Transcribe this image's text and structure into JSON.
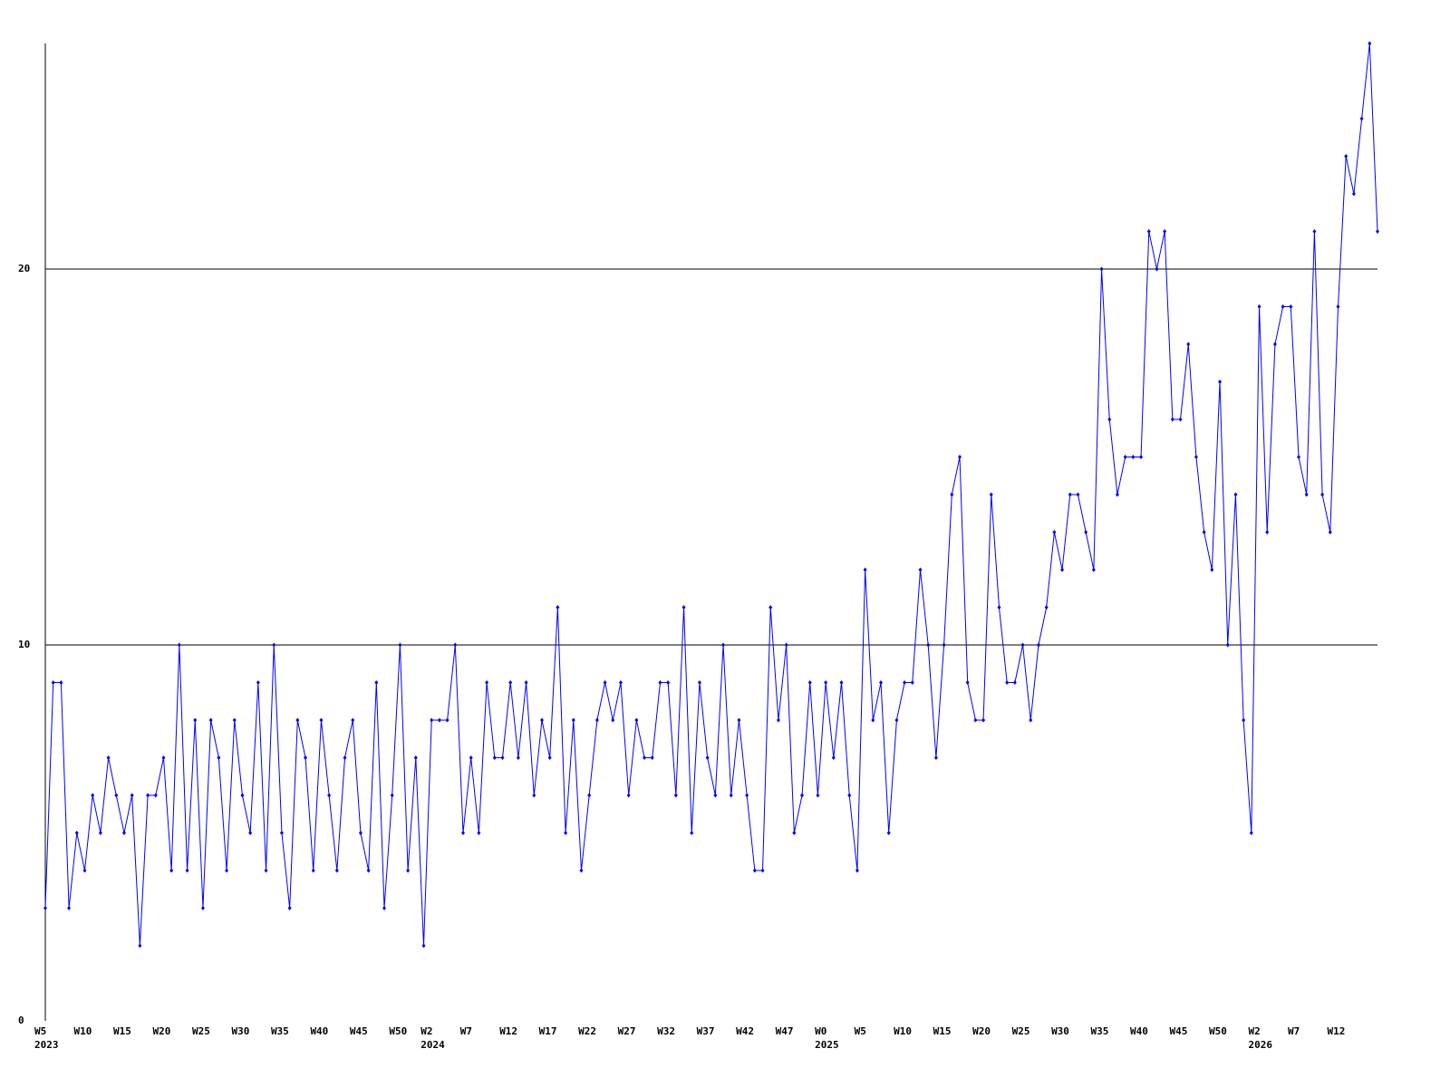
{
  "chart_data": {
    "type": "line",
    "color": "#0000ff",
    "grid": true,
    "ylim": [
      0,
      26
    ],
    "yticks": [
      0,
      10,
      20
    ],
    "categories": [
      "W5",
      null,
      null,
      null,
      null,
      "W10",
      null,
      null,
      null,
      null,
      "W15",
      null,
      null,
      null,
      null,
      "W20",
      null,
      null,
      null,
      null,
      "W25",
      null,
      null,
      null,
      null,
      "W30",
      null,
      null,
      null,
      null,
      "W35",
      null,
      null,
      null,
      null,
      "W40",
      null,
      null,
      null,
      null,
      "W45",
      null,
      null,
      null,
      null,
      "W50",
      null,
      null,
      null,
      "W2",
      null,
      null,
      null,
      null,
      "W7",
      null,
      null,
      null,
      null,
      "W12",
      null,
      null,
      null,
      null,
      "W17",
      null,
      null,
      null,
      null,
      "W22",
      null,
      null,
      null,
      null,
      "W27",
      null,
      null,
      null,
      null,
      "W32",
      null,
      null,
      null,
      null,
      "W37",
      null,
      null,
      null,
      null,
      "W42",
      null,
      null,
      null,
      null,
      "W47",
      null,
      null,
      null,
      null,
      "W0",
      null,
      null,
      null,
      null,
      "W5",
      null,
      null,
      null,
      null,
      "W10",
      null,
      null,
      null,
      null,
      "W15",
      null,
      null,
      null,
      null,
      "W20",
      null,
      null,
      null,
      null,
      "W25",
      null,
      null,
      null,
      null,
      "W30",
      null,
      null,
      null,
      null,
      "W35",
      null,
      null,
      null,
      null,
      "W40",
      null,
      null,
      null,
      null,
      "W45",
      null,
      null,
      null,
      null,
      "W50",
      null,
      null,
      null,
      null,
      "W2",
      null,
      null,
      null,
      null,
      "W7",
      null,
      null,
      null,
      null,
      "W12",
      null,
      null,
      null,
      null,
      null
    ],
    "category_years": [
      "2023",
      null,
      null,
      null,
      null,
      null,
      null,
      null,
      null,
      null,
      null,
      null,
      null,
      null,
      null,
      null,
      null,
      null,
      null,
      null,
      null,
      null,
      null,
      null,
      null,
      null,
      null,
      null,
      null,
      null,
      null,
      null,
      null,
      null,
      null,
      null,
      null,
      null,
      null,
      null,
      null,
      null,
      null,
      null,
      null,
      null,
      null,
      null,
      null,
      "2024",
      null,
      null,
      null,
      null,
      null,
      null,
      null,
      null,
      null,
      null,
      null,
      null,
      null,
      null,
      null,
      null,
      null,
      null,
      null,
      null,
      null,
      null,
      null,
      null,
      null,
      null,
      null,
      null,
      null,
      null,
      null,
      null,
      null,
      null,
      null,
      null,
      null,
      null,
      null,
      null,
      null,
      null,
      null,
      null,
      null,
      null,
      null,
      null,
      null,
      "2025",
      null,
      null,
      null,
      null,
      null,
      null,
      null,
      null,
      null,
      null,
      null,
      null,
      null,
      null,
      null,
      null,
      null,
      null,
      null,
      null,
      null,
      null,
      null,
      null,
      null,
      null,
      null,
      null,
      null,
      null,
      null,
      null,
      null,
      null,
      null,
      null,
      null,
      null,
      null,
      null,
      null,
      null,
      null,
      null,
      null,
      null,
      null,
      null,
      null,
      null,
      null,
      null,
      null,
      null,
      "2026",
      null,
      null,
      null,
      null,
      null,
      null,
      null,
      null,
      null,
      null,
      null,
      null,
      null,
      null,
      null
    ],
    "values": [
      3,
      9,
      9,
      3,
      5,
      4,
      6,
      5,
      7,
      6,
      5,
      6,
      2,
      6,
      6,
      7,
      4,
      10,
      4,
      8,
      3,
      8,
      7,
      4,
      8,
      6,
      5,
      9,
      4,
      10,
      5,
      3,
      8,
      7,
      4,
      8,
      6,
      4,
      7,
      8,
      5,
      4,
      9,
      3,
      6,
      10,
      4,
      7,
      2,
      8,
      8,
      8,
      10,
      5,
      7,
      5,
      9,
      7,
      7,
      9,
      7,
      9,
      6,
      8,
      7,
      11,
      5,
      8,
      4,
      6,
      8,
      9,
      8,
      9,
      6,
      8,
      7,
      7,
      9,
      9,
      6,
      11,
      5,
      9,
      7,
      6,
      10,
      6,
      8,
      6,
      4,
      4,
      11,
      8,
      10,
      5,
      6,
      9,
      6,
      9,
      7,
      9,
      6,
      4,
      12,
      8,
      9,
      5,
      8,
      9,
      9,
      12,
      10,
      7,
      10,
      14,
      15,
      9,
      8,
      8,
      14,
      11,
      9,
      9,
      10,
      8,
      10,
      11,
      13,
      12,
      14,
      14,
      13,
      12,
      20,
      16,
      14,
      15,
      15,
      15,
      21,
      20,
      21,
      16,
      16,
      18,
      15,
      13,
      12,
      17,
      10,
      14,
      8,
      5,
      19,
      13,
      18,
      19,
      19,
      15,
      14,
      21,
      14,
      13,
      19,
      23,
      22,
      24,
      26,
      21
    ]
  }
}
